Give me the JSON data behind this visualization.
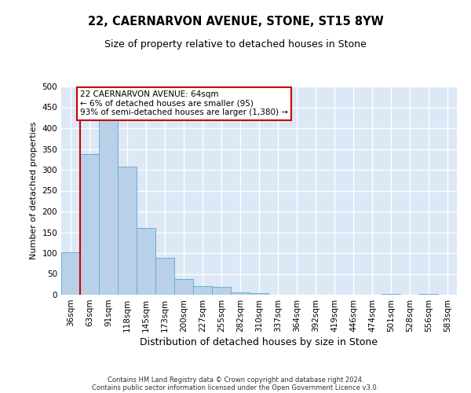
{
  "title_line1": "22, CAERNARVON AVENUE, STONE, ST15 8YW",
  "title_line2": "Size of property relative to detached houses in Stone",
  "xlabel": "Distribution of detached houses by size in Stone",
  "ylabel": "Number of detached properties",
  "footnote_line1": "Contains HM Land Registry data © Crown copyright and database right 2024.",
  "footnote_line2": "Contains public sector information licensed under the Open Government Licence v3.0.",
  "annotation_line1": "22 CAERNARVON AVENUE: 64sqm",
  "annotation_line2": "← 6% of detached houses are smaller (95)",
  "annotation_line3": "93% of semi-detached houses are larger (1,380) →",
  "bar_color": "#b8d0e8",
  "bar_edge_color": "#6baed6",
  "marker_color": "#cc0000",
  "background_color": "#dce8f5",
  "grid_color": "#ffffff",
  "categories": [
    "36sqm",
    "63sqm",
    "91sqm",
    "118sqm",
    "145sqm",
    "173sqm",
    "200sqm",
    "227sqm",
    "255sqm",
    "282sqm",
    "310sqm",
    "337sqm",
    "364sqm",
    "392sqm",
    "419sqm",
    "446sqm",
    "474sqm",
    "501sqm",
    "528sqm",
    "556sqm",
    "583sqm"
  ],
  "values": [
    102,
    338,
    418,
    308,
    160,
    88,
    38,
    20,
    18,
    6,
    3,
    0,
    0,
    0,
    0,
    0,
    0,
    2,
    0,
    2,
    0
  ],
  "property_bin_index": 1,
  "ylim": [
    0,
    500
  ],
  "yticks": [
    0,
    50,
    100,
    150,
    200,
    250,
    300,
    350,
    400,
    450,
    500
  ],
  "title_fontsize": 10.5,
  "subtitle_fontsize": 9,
  "ylabel_fontsize": 8,
  "xlabel_fontsize": 9,
  "tick_fontsize": 7.5,
  "annotation_fontsize": 7.5,
  "footnote_fontsize": 6
}
